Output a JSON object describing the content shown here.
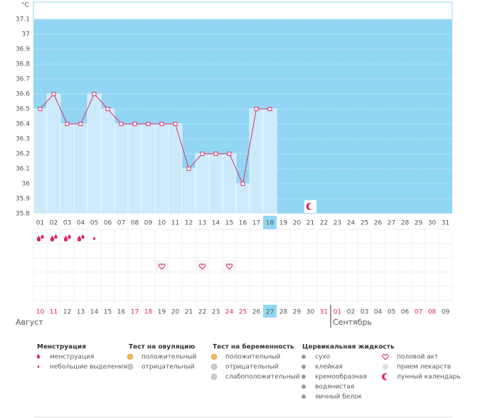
{
  "chart_data": {
    "type": "line",
    "unit": "°C",
    "categories": [
      "01",
      "02",
      "03",
      "04",
      "05",
      "06",
      "07",
      "08",
      "09",
      "10",
      "11",
      "12",
      "13",
      "14",
      "15",
      "16",
      "17",
      "18",
      "19",
      "20",
      "21",
      "22",
      "23",
      "24",
      "25",
      "26",
      "27",
      "28",
      "29",
      "30",
      "31"
    ],
    "values": [
      36.5,
      36.6,
      36.4,
      36.4,
      36.6,
      36.5,
      36.4,
      36.4,
      36.4,
      36.4,
      36.4,
      36.1,
      36.2,
      36.2,
      36.2,
      36.0,
      36.5,
      36.5,
      null,
      null,
      null,
      null,
      null,
      null,
      null,
      null,
      null,
      null,
      null,
      null,
      null
    ],
    "ylim": [
      35.8,
      37.1
    ],
    "yticks": [
      35.8,
      35.9,
      36,
      36.1,
      36.2,
      36.3,
      36.4,
      36.5,
      36.6,
      36.7,
      36.8,
      36.9,
      37,
      37.1
    ],
    "highlight_category": "18",
    "highlight_date": "27",
    "dates": [
      "10",
      "11",
      "12",
      "13",
      "14",
      "15",
      "16",
      "17",
      "18",
      "19",
      "20",
      "21",
      "22",
      "23",
      "24",
      "25",
      "26",
      "27",
      "28",
      "29",
      "30",
      "31",
      "01",
      "02",
      "03",
      "04",
      "05",
      "06",
      "07",
      "08",
      "09"
    ],
    "date_colors": [
      "#e0245e",
      "#e0245e",
      "#555",
      "#555",
      "#555",
      "#555",
      "#555",
      "#e0245e",
      "#e0245e",
      "#555",
      "#555",
      "#555",
      "#555",
      "#555",
      "#e0245e",
      "#e0245e",
      "#555",
      "#555",
      "#555",
      "#555",
      "#555",
      "#e0245e",
      "#e0245e",
      "#555",
      "#555",
      "#555",
      "#555",
      "#555",
      "#e0245e",
      "#e0245e",
      "#555"
    ],
    "months": [
      "Август",
      "Сентябрь"
    ],
    "events": [
      {
        "day": "01",
        "kind": "menstruation"
      },
      {
        "day": "02",
        "kind": "menstruation"
      },
      {
        "day": "03",
        "kind": "menstruation"
      },
      {
        "day": "04",
        "kind": "menstruation"
      },
      {
        "day": "05",
        "kind": "spotting"
      },
      {
        "day": "10",
        "kind": "intercourse"
      },
      {
        "day": "13",
        "kind": "intercourse"
      },
      {
        "day": "15",
        "kind": "intercourse"
      },
      {
        "day": "21",
        "kind": "moon"
      }
    ],
    "line_color": "#d6336c",
    "bar_color": "#cdeafb",
    "plot_color": "#93d6f4"
  },
  "legend": [
    {
      "title": "Менструация",
      "items": [
        "менструация",
        "небольшие выделения"
      ]
    },
    {
      "title": "Тест на овуляцию",
      "items": [
        "положительный",
        "отрицательный"
      ]
    },
    {
      "title": "Тест на беременность",
      "items": [
        "положительный",
        "отрицательный",
        "слабоположительный"
      ]
    },
    {
      "title": "Цервикальная жидкость",
      "items": [
        "сухо",
        "клейкая",
        "кремообразная",
        "водянистая",
        "яичный белок"
      ]
    },
    {
      "items": [
        "половой акт",
        "прием лекарств",
        "лунный календарь"
      ]
    }
  ]
}
